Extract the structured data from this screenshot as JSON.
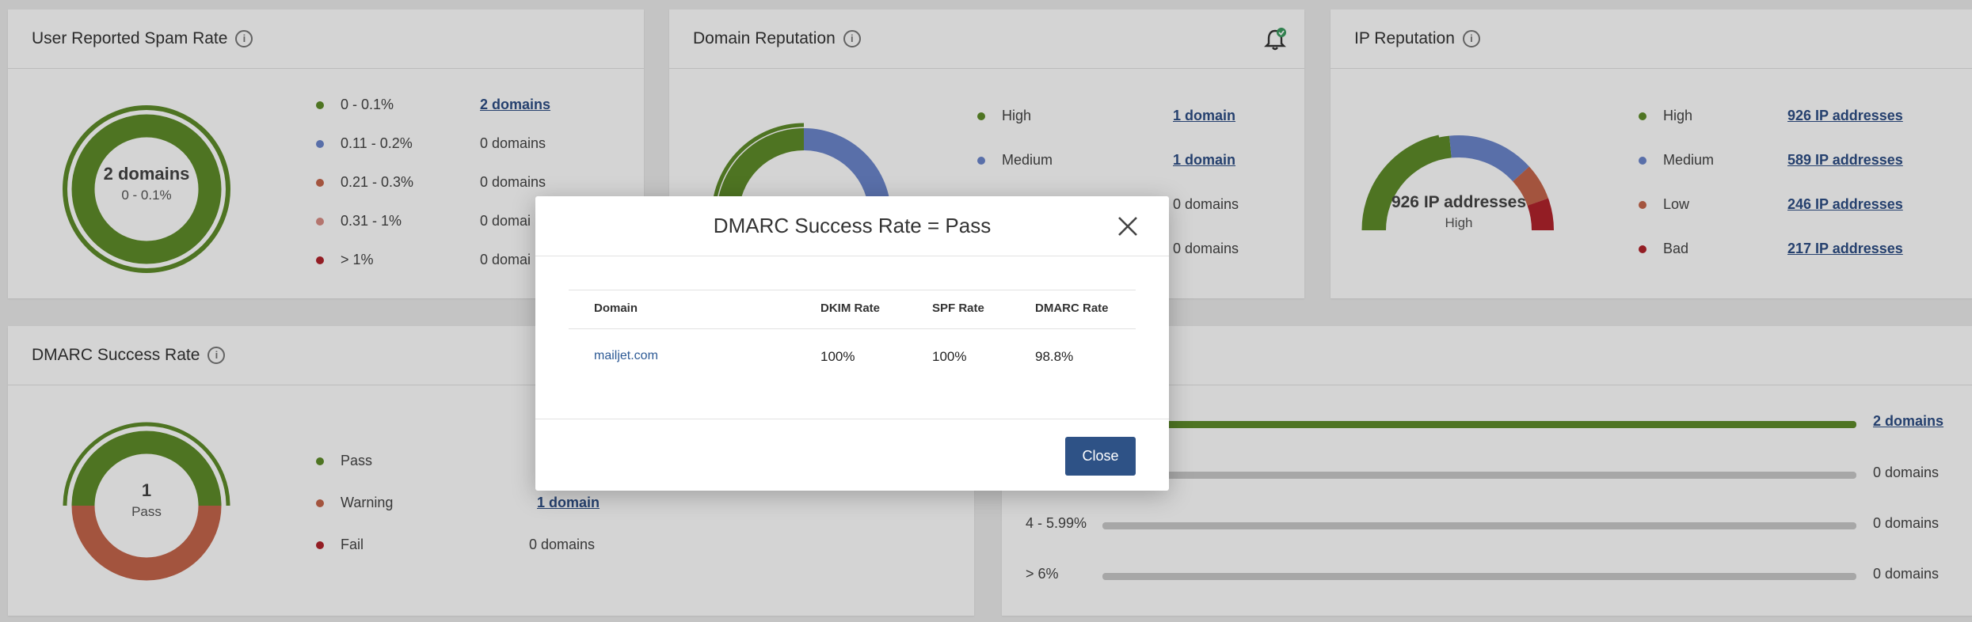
{
  "spam": {
    "title": "User Reported Spam Rate",
    "center_value": "2 domains",
    "center_sub": "0 - 0.1%",
    "items": [
      {
        "label": "0 - 0.1%",
        "value": "2 domains",
        "color": "#5e8c2a"
      },
      {
        "label": "0.11 - 0.2%",
        "value": "0 domains",
        "color": "#6b86cc"
      },
      {
        "label": "0.21 - 0.3%",
        "value": "0 domains",
        "color": "#c5664b"
      },
      {
        "label": "0.31 - 1%",
        "value": "0 domai",
        "color": "#d98d85"
      },
      {
        "label": "> 1%",
        "value": "0 domai",
        "color": "#b1242c"
      }
    ]
  },
  "domain_rep": {
    "title": "Domain Reputation",
    "bell": "bell-icon",
    "items": [
      {
        "label": "High",
        "value": "1 domain",
        "color": "#5e8c2a"
      },
      {
        "label": "Medium",
        "value": "1 domain",
        "color": "#6b86cc"
      },
      {
        "value": "0 domains"
      },
      {
        "value": "0 domains"
      }
    ]
  },
  "ip_rep": {
    "title": "IP Reputation",
    "center_value": "926 IP addresses",
    "center_sub": "High",
    "items": [
      {
        "label": "High",
        "value": "926 IP addresses",
        "color": "#5e8c2a"
      },
      {
        "label": "Medium",
        "value": "589 IP addresses",
        "color": "#6b86cc"
      },
      {
        "label": "Low",
        "value": "246 IP addresses",
        "color": "#c5664b"
      },
      {
        "label": "Bad",
        "value": "217 IP addresses",
        "color": "#b1242c"
      }
    ]
  },
  "dmarc": {
    "title": "DMARC Success Rate",
    "center_value": "1",
    "center_sub": "Pass",
    "items": [
      {
        "label": "Pass",
        "value": "",
        "color": "#5e8c2a"
      },
      {
        "label": "Warning",
        "value": "1 domain",
        "color": "#c5664b"
      },
      {
        "label": "Fail",
        "value": "0 domains",
        "color": "#b1242c"
      }
    ]
  },
  "bars_card": {
    "rows": [
      {
        "label": "",
        "value": "2 domains",
        "fill": 1.0
      },
      {
        "label": "",
        "value": "0 domains",
        "fill": 0
      },
      {
        "label": "4 - 5.99%",
        "value": "0 domains",
        "fill": 0
      },
      {
        "label": "> 6%",
        "value": "0 domains",
        "fill": 0
      }
    ]
  },
  "modal": {
    "title": "DMARC Success Rate = Pass",
    "columns": [
      "Domain",
      "DKIM Rate",
      "SPF Rate",
      "DMARC Rate"
    ],
    "rows": [
      {
        "domain": "mailjet.com",
        "dkim": "100%",
        "spf": "100%",
        "dmarc": "98.8%"
      }
    ],
    "close_label": "Close"
  }
}
